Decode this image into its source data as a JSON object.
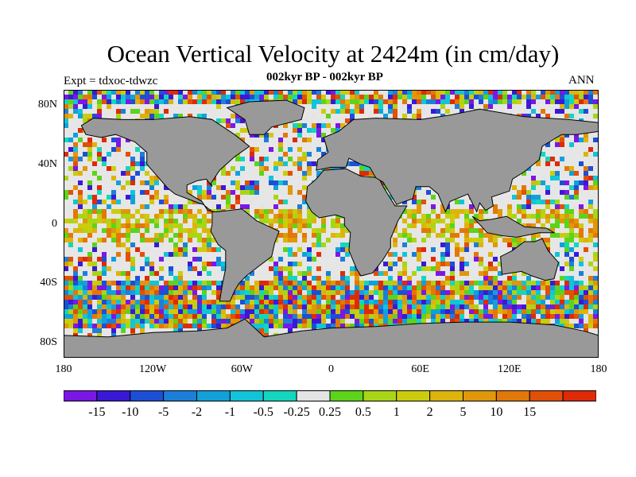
{
  "title": "Ocean Vertical Velocity at 2424m (in cm/day)",
  "subtitle": "002kyr BP - 002kyr BP",
  "expt_label": "Expt = tdxoc-tdwzc",
  "season": "ANN",
  "lat_ticks": [
    {
      "label": "80N",
      "value": 80
    },
    {
      "label": "40N",
      "value": 40
    },
    {
      "label": "0",
      "value": 0
    },
    {
      "label": "40S",
      "value": -40
    },
    {
      "label": "80S",
      "value": -80
    }
  ],
  "lon_ticks": [
    {
      "label": "180",
      "value": -180
    },
    {
      "label": "120W",
      "value": -120
    },
    {
      "label": "60W",
      "value": -60
    },
    {
      "label": "0",
      "value": 0
    },
    {
      "label": "60E",
      "value": 60
    },
    {
      "label": "120E",
      "value": 120
    },
    {
      "label": "180",
      "value": 180
    }
  ],
  "colorbar": {
    "colors": [
      "#7b17e6",
      "#3a19d6",
      "#1d4fd6",
      "#1b7fd9",
      "#12a0db",
      "#11c4d8",
      "#14d6be",
      "#e4e4e4",
      "#5dd31a",
      "#a8d616",
      "#cccc0e",
      "#ddb40b",
      "#e0970a",
      "#e27807",
      "#e15007",
      "#de2a06"
    ],
    "labels": [
      "-15",
      "-10",
      "-5",
      "-2",
      "-1",
      "-0.5",
      "-0.25",
      "0.25",
      "0.5",
      "1",
      "2",
      "5",
      "10",
      "15"
    ]
  },
  "map_colors": {
    "land": "#999999",
    "quiet_ocean": "#e6e6e6",
    "coastline": "#000000"
  }
}
